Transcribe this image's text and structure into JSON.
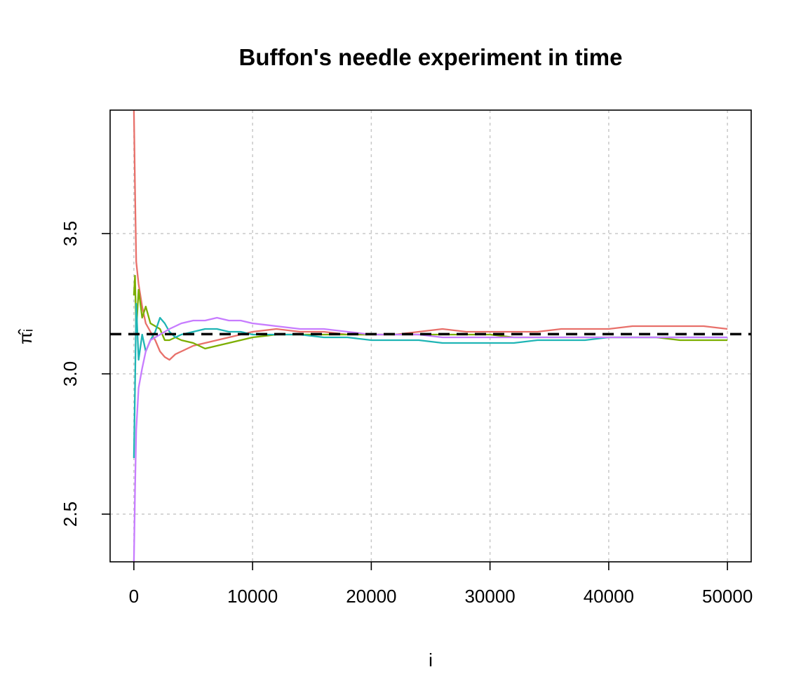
{
  "chart_data": {
    "type": "line",
    "title": "Buffon's needle experiment in time",
    "xlabel": "i",
    "ylabel": "π̂ᵢ",
    "xlim": [
      -2000,
      52000
    ],
    "ylim": [
      2.33,
      3.94
    ],
    "x_ticks": [
      0,
      10000,
      20000,
      30000,
      40000,
      50000
    ],
    "x_tick_labels": [
      "0",
      "10000",
      "20000",
      "30000",
      "40000",
      "50000"
    ],
    "y_ticks": [
      2.5,
      3.0,
      3.5
    ],
    "y_tick_labels": [
      "2.5",
      "3.0",
      "3.5"
    ],
    "grid": true,
    "reference_line": {
      "y": 3.14159,
      "style": "dashed",
      "color": "#000000"
    },
    "series": [
      {
        "color": "#E8706A",
        "points": [
          [
            0,
            3.94
          ],
          [
            100,
            3.66
          ],
          [
            200,
            3.4
          ],
          [
            400,
            3.32
          ],
          [
            700,
            3.24
          ],
          [
            1000,
            3.18
          ],
          [
            1400,
            3.15
          ],
          [
            1800,
            3.12
          ],
          [
            2200,
            3.08
          ],
          [
            2600,
            3.06
          ],
          [
            3000,
            3.05
          ],
          [
            3500,
            3.07
          ],
          [
            4000,
            3.08
          ],
          [
            5000,
            3.1
          ],
          [
            6000,
            3.11
          ],
          [
            7000,
            3.12
          ],
          [
            8000,
            3.13
          ],
          [
            9000,
            3.14
          ],
          [
            10000,
            3.15
          ],
          [
            12000,
            3.16
          ],
          [
            14000,
            3.15
          ],
          [
            16000,
            3.15
          ],
          [
            18000,
            3.14
          ],
          [
            20000,
            3.14
          ],
          [
            22000,
            3.14
          ],
          [
            24000,
            3.15
          ],
          [
            26000,
            3.16
          ],
          [
            28000,
            3.15
          ],
          [
            30000,
            3.15
          ],
          [
            32000,
            3.15
          ],
          [
            34000,
            3.15
          ],
          [
            36000,
            3.16
          ],
          [
            38000,
            3.16
          ],
          [
            40000,
            3.16
          ],
          [
            42000,
            3.17
          ],
          [
            44000,
            3.17
          ],
          [
            46000,
            3.17
          ],
          [
            48000,
            3.17
          ],
          [
            50000,
            3.16
          ]
        ]
      },
      {
        "color": "#7CAE00",
        "points": [
          [
            0,
            3.28
          ],
          [
            100,
            3.35
          ],
          [
            200,
            3.15
          ],
          [
            400,
            3.3
          ],
          [
            700,
            3.2
          ],
          [
            1000,
            3.24
          ],
          [
            1400,
            3.18
          ],
          [
            1800,
            3.17
          ],
          [
            2200,
            3.16
          ],
          [
            2600,
            3.12
          ],
          [
            3000,
            3.12
          ],
          [
            3500,
            3.13
          ],
          [
            4000,
            3.12
          ],
          [
            5000,
            3.11
          ],
          [
            6000,
            3.09
          ],
          [
            7000,
            3.1
          ],
          [
            8000,
            3.11
          ],
          [
            9000,
            3.12
          ],
          [
            10000,
            3.13
          ],
          [
            12000,
            3.14
          ],
          [
            14000,
            3.14
          ],
          [
            16000,
            3.14
          ],
          [
            18000,
            3.14
          ],
          [
            20000,
            3.14
          ],
          [
            22000,
            3.14
          ],
          [
            24000,
            3.14
          ],
          [
            26000,
            3.14
          ],
          [
            28000,
            3.14
          ],
          [
            30000,
            3.14
          ],
          [
            32000,
            3.13
          ],
          [
            34000,
            3.13
          ],
          [
            36000,
            3.13
          ],
          [
            38000,
            3.13
          ],
          [
            40000,
            3.13
          ],
          [
            42000,
            3.13
          ],
          [
            44000,
            3.13
          ],
          [
            46000,
            3.12
          ],
          [
            48000,
            3.12
          ],
          [
            50000,
            3.12
          ]
        ]
      },
      {
        "color": "#1FB5B5",
        "points": [
          [
            0,
            2.7
          ],
          [
            100,
            2.95
          ],
          [
            200,
            3.25
          ],
          [
            400,
            3.05
          ],
          [
            700,
            3.14
          ],
          [
            1000,
            3.08
          ],
          [
            1400,
            3.12
          ],
          [
            1800,
            3.15
          ],
          [
            2200,
            3.2
          ],
          [
            2600,
            3.18
          ],
          [
            3000,
            3.15
          ],
          [
            3500,
            3.13
          ],
          [
            4000,
            3.14
          ],
          [
            5000,
            3.15
          ],
          [
            6000,
            3.16
          ],
          [
            7000,
            3.16
          ],
          [
            8000,
            3.15
          ],
          [
            9000,
            3.15
          ],
          [
            10000,
            3.14
          ],
          [
            12000,
            3.14
          ],
          [
            14000,
            3.14
          ],
          [
            16000,
            3.13
          ],
          [
            18000,
            3.13
          ],
          [
            20000,
            3.12
          ],
          [
            22000,
            3.12
          ],
          [
            24000,
            3.12
          ],
          [
            26000,
            3.11
          ],
          [
            28000,
            3.11
          ],
          [
            30000,
            3.11
          ],
          [
            32000,
            3.11
          ],
          [
            34000,
            3.12
          ],
          [
            36000,
            3.12
          ],
          [
            38000,
            3.12
          ],
          [
            40000,
            3.13
          ],
          [
            42000,
            3.13
          ],
          [
            44000,
            3.13
          ],
          [
            46000,
            3.13
          ],
          [
            48000,
            3.13
          ],
          [
            50000,
            3.13
          ]
        ]
      },
      {
        "color": "#C77CFF",
        "points": [
          [
            0,
            2.33
          ],
          [
            100,
            2.58
          ],
          [
            200,
            2.8
          ],
          [
            400,
            2.95
          ],
          [
            700,
            3.02
          ],
          [
            1000,
            3.08
          ],
          [
            1400,
            3.12
          ],
          [
            1800,
            3.13
          ],
          [
            2200,
            3.14
          ],
          [
            2600,
            3.15
          ],
          [
            3000,
            3.16
          ],
          [
            3500,
            3.17
          ],
          [
            4000,
            3.18
          ],
          [
            5000,
            3.19
          ],
          [
            6000,
            3.19
          ],
          [
            7000,
            3.2
          ],
          [
            8000,
            3.19
          ],
          [
            9000,
            3.19
          ],
          [
            10000,
            3.18
          ],
          [
            12000,
            3.17
          ],
          [
            14000,
            3.16
          ],
          [
            16000,
            3.16
          ],
          [
            18000,
            3.15
          ],
          [
            20000,
            3.14
          ],
          [
            22000,
            3.14
          ],
          [
            24000,
            3.14
          ],
          [
            26000,
            3.13
          ],
          [
            28000,
            3.13
          ],
          [
            30000,
            3.13
          ],
          [
            32000,
            3.13
          ],
          [
            34000,
            3.13
          ],
          [
            36000,
            3.13
          ],
          [
            38000,
            3.13
          ],
          [
            40000,
            3.13
          ],
          [
            42000,
            3.13
          ],
          [
            44000,
            3.13
          ],
          [
            46000,
            3.13
          ],
          [
            48000,
            3.13
          ],
          [
            50000,
            3.13
          ]
        ]
      }
    ]
  }
}
